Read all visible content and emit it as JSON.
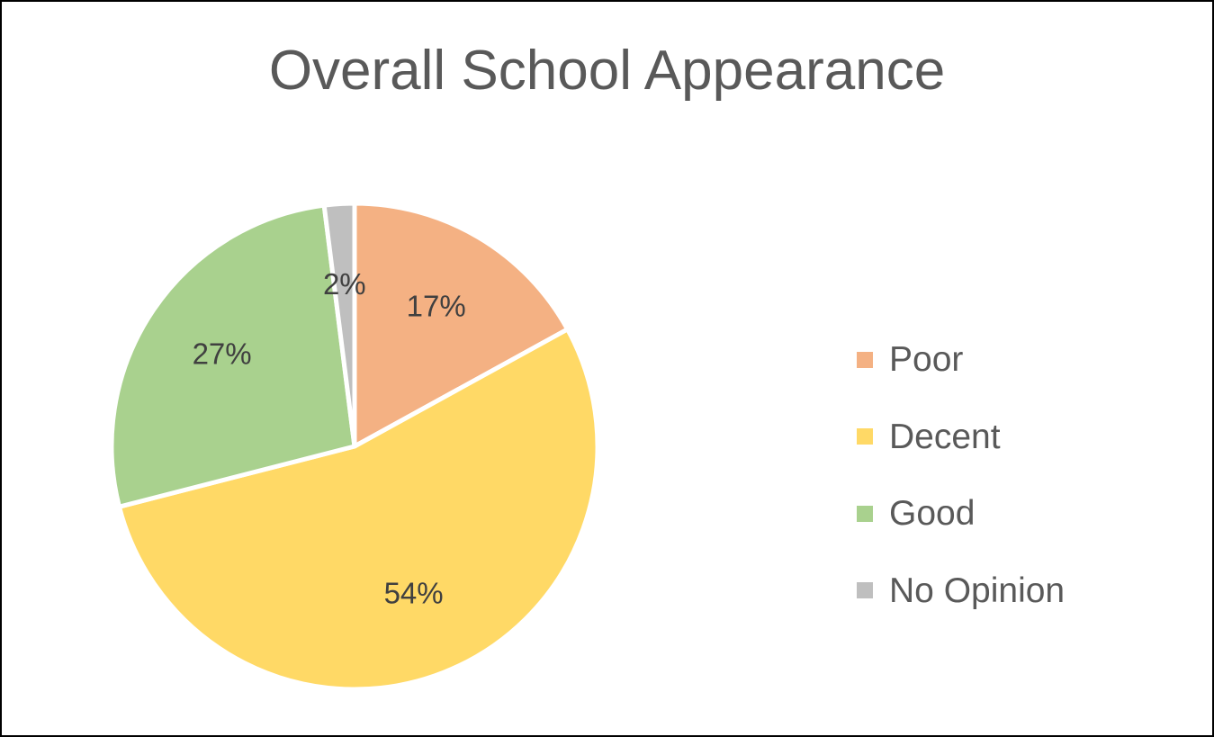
{
  "chart_data": {
    "type": "pie",
    "title": "Overall School Appearance",
    "categories": [
      "Poor",
      "Decent",
      "Good",
      "No Opinion"
    ],
    "values": [
      17,
      54,
      27,
      2
    ],
    "data_labels": [
      "17%",
      "54%",
      "27%",
      "2%"
    ],
    "colors": [
      "#F4B183",
      "#FFD966",
      "#A9D18E",
      "#BFBFBF"
    ],
    "start_angle_deg": 0,
    "direction": "clockwise",
    "legend": {
      "position": "right"
    }
  }
}
